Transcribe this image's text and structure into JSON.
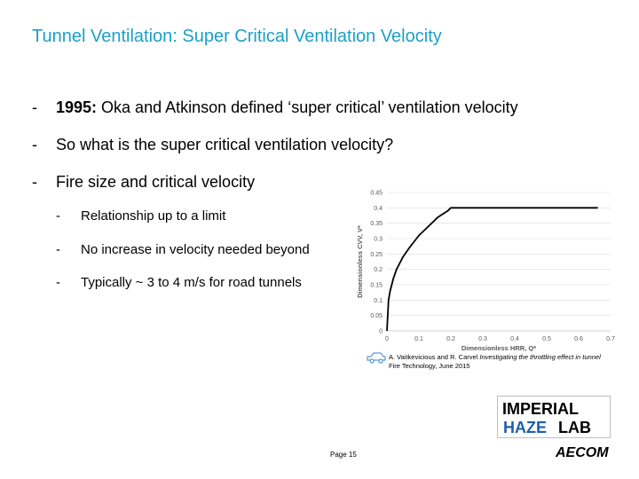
{
  "slide": {
    "title": "Tunnel Ventilation: Super Critical Ventilation Velocity",
    "bullets": [
      {
        "dash": "-",
        "bold": "1995:",
        "text": " Oka and Atkinson defined ‘super critical’ ventilation velocity"
      },
      {
        "dash": "-",
        "text": "So what is the super critical ventilation velocity?"
      },
      {
        "dash": "-",
        "text": "Fire size and critical velocity"
      }
    ],
    "sub_bullets": [
      {
        "dash": "-",
        "text": "Relationship up to a limit"
      },
      {
        "dash": "-",
        "text": "No increase in velocity needed beyond"
      },
      {
        "dash": "-",
        "text": "Typically ~ 3 to 4 m/s for road tunnels"
      }
    ],
    "citation": {
      "authors": "A. Vaitkevicious and R. Carvel ",
      "paper": "Investigating the throttling effect in tunnel",
      "journal": "Fire Technology, June 2015"
    },
    "page_label": "Page 15",
    "logos": {
      "imperial_top": "IMPERIAL",
      "imperial_bottom_left": "HAZE",
      "imperial_bottom_right": "LAB",
      "aecom": "AECOM"
    },
    "colors": {
      "title": "#1aa0c8",
      "curve": "#000000",
      "grid": "#d9d9d9"
    }
  },
  "chart_data": {
    "type": "line",
    "xlabel": "Dimensionless HRR, Q*",
    "ylabel": "Dimensionless CVV, V*",
    "xlim": [
      0,
      0.7
    ],
    "ylim": [
      0,
      0.45
    ],
    "x_ticks": [
      "0",
      "0.1",
      "0.2",
      "0.3",
      "0.4",
      "0.5",
      "0.6",
      "0.7"
    ],
    "y_ticks": [
      "0",
      "0.05",
      "0.1",
      "0.15",
      "0.2",
      "0.25",
      "0.3",
      "0.35",
      "0.4",
      "0.45"
    ],
    "grid": "horizontal",
    "series": [
      {
        "x": [
          0,
          0.005,
          0.01,
          0.02,
          0.03,
          0.05,
          0.07,
          0.1,
          0.13,
          0.16,
          0.19,
          0.2,
          0.3,
          0.4,
          0.5,
          0.6,
          0.66
        ],
        "values": [
          0.0,
          0.1,
          0.13,
          0.17,
          0.2,
          0.24,
          0.27,
          0.31,
          0.34,
          0.37,
          0.39,
          0.4,
          0.4,
          0.4,
          0.4,
          0.4,
          0.4
        ]
      }
    ]
  }
}
